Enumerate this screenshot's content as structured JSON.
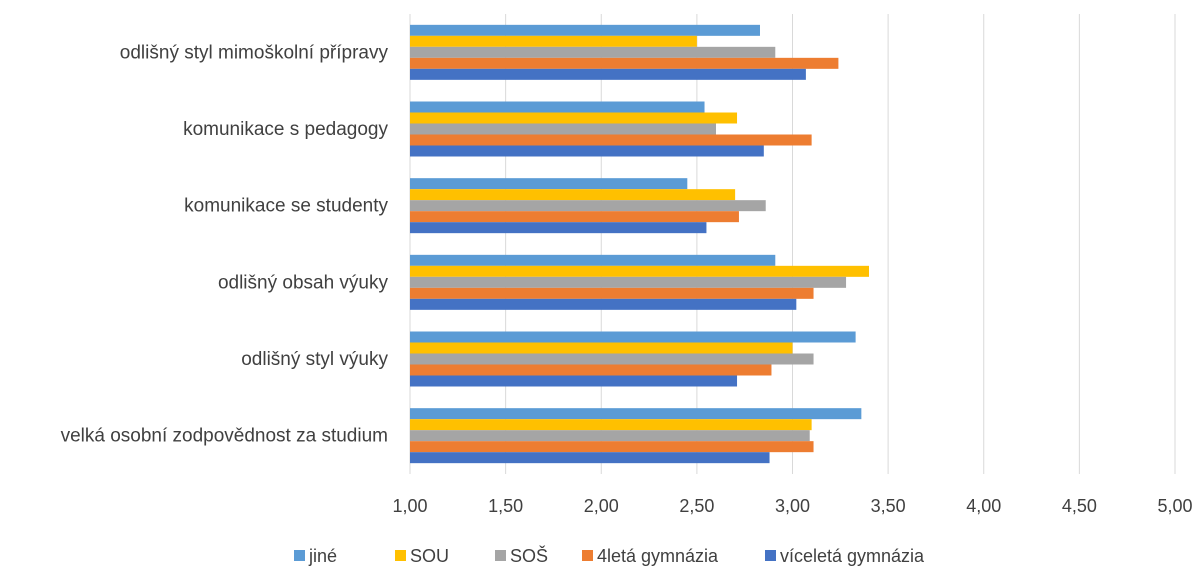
{
  "chart_data": {
    "type": "bar",
    "orientation": "horizontal",
    "title": "",
    "xlabel": "",
    "ylabel": "",
    "xlim": [
      1.0,
      5.0
    ],
    "x_ticks": [
      "1,00",
      "1,50",
      "2,00",
      "2,50",
      "3,00",
      "3,50",
      "4,00",
      "4,50",
      "5,00"
    ],
    "x_tick_values": [
      1.0,
      1.5,
      2.0,
      2.5,
      3.0,
      3.5,
      4.0,
      4.5,
      5.0
    ],
    "grid": true,
    "legend_position": "bottom",
    "categories": [
      "odlišný styl mimoškolní přípravy",
      "komunikace s pedagogy",
      "komunikace se studenty",
      "odlišný obsah výuky",
      "odlišný styl výuky",
      "velká osobní zodpovědnost za studium"
    ],
    "series": [
      {
        "name": "jiné",
        "color": "#5B9BD5",
        "values": [
          2.83,
          2.54,
          2.45,
          2.91,
          3.33,
          3.36
        ]
      },
      {
        "name": "SOU",
        "color": "#FFC000",
        "values": [
          2.5,
          2.71,
          2.7,
          3.4,
          3.0,
          3.1
        ]
      },
      {
        "name": "SOŠ",
        "color": "#A5A5A5",
        "values": [
          2.91,
          2.6,
          2.86,
          3.28,
          3.11,
          3.09
        ]
      },
      {
        "name": "4letá gymnázia",
        "color": "#ED7D31",
        "values": [
          3.24,
          3.1,
          2.72,
          3.11,
          2.89,
          3.11
        ]
      },
      {
        "name": "víceletá gymnázia",
        "color": "#4472C4",
        "values": [
          3.07,
          2.85,
          2.55,
          3.02,
          2.71,
          2.88
        ]
      }
    ]
  }
}
